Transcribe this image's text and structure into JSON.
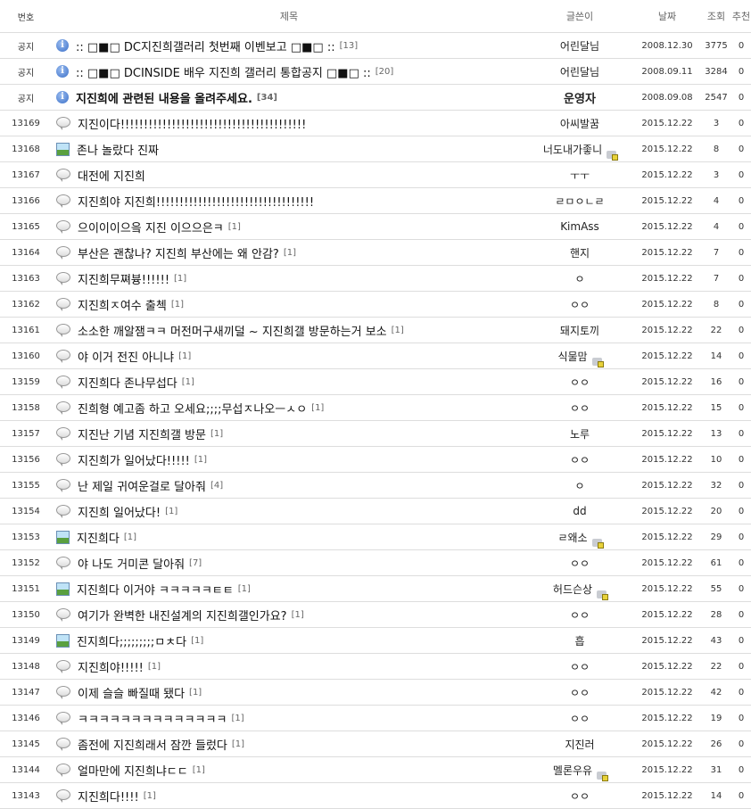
{
  "header": {
    "no": "번호",
    "title": "제목",
    "writer": "글쓴이",
    "date": "날짜",
    "views": "조회",
    "recommend": "추천"
  },
  "rows": [
    {
      "no": "공지",
      "icon": "info-icon",
      "title": ":: □■□ DC지진희갤러리 첫번째 이벤보고 □■□ ::",
      "comments": "[13]",
      "writer": "어린달님",
      "gallog": false,
      "date": "2008.12.30",
      "views": "3775",
      "recommend": "0",
      "bold": false
    },
    {
      "no": "공지",
      "icon": "info-icon",
      "title": ":: □■□ DCINSIDE 배우 지진희 갤러리 통합공지 □■□ ::",
      "comments": "[20]",
      "writer": "어린달님",
      "gallog": false,
      "date": "2008.09.11",
      "views": "3284",
      "recommend": "0",
      "bold": false
    },
    {
      "no": "공지",
      "icon": "info-icon",
      "title": "지진희에 관련된 내용을 올려주세요.",
      "comments": "[34]",
      "writer": "운영자",
      "gallog": false,
      "date": "2008.09.08",
      "views": "2547",
      "recommend": "0",
      "bold": true
    },
    {
      "no": "13169",
      "icon": "speech-bubble-icon",
      "title": "지진이다!!!!!!!!!!!!!!!!!!!!!!!!!!!!!!!!!!!!!!!!",
      "comments": "",
      "writer": "아씨발꿈",
      "gallog": false,
      "date": "2015.12.22",
      "views": "3",
      "recommend": "0"
    },
    {
      "no": "13168",
      "icon": "image-icon",
      "title": "존나 놀랐다 진짜",
      "comments": "",
      "writer": "너도내가좋니",
      "gallog": true,
      "date": "2015.12.22",
      "views": "8",
      "recommend": "0"
    },
    {
      "no": "13167",
      "icon": "speech-bubble-icon",
      "title": "대전에 지진희",
      "comments": "",
      "writer": "ㅜㅜ",
      "gallog": false,
      "date": "2015.12.22",
      "views": "3",
      "recommend": "0"
    },
    {
      "no": "13166",
      "icon": "speech-bubble-icon",
      "title": "지진희야 지진희!!!!!!!!!!!!!!!!!!!!!!!!!!!!!!!!!!",
      "comments": "",
      "writer": "ㄹㅁㅇㄴㄹ",
      "gallog": false,
      "date": "2015.12.22",
      "views": "4",
      "recommend": "0"
    },
    {
      "no": "13165",
      "icon": "speech-bubble-icon",
      "title": "으이이이으읔 지진 이으으은ㅋ",
      "comments": "[1]",
      "writer": "KimAss",
      "gallog": false,
      "date": "2015.12.22",
      "views": "4",
      "recommend": "0"
    },
    {
      "no": "13164",
      "icon": "speech-bubble-icon",
      "title": "부산은 괜찮나? 지진희 부산에는 왜 안감?",
      "comments": "[1]",
      "writer": "핸지",
      "gallog": false,
      "date": "2015.12.22",
      "views": "7",
      "recommend": "0"
    },
    {
      "no": "13163",
      "icon": "speech-bubble-icon",
      "title": "지진희무쪄븅!!!!!!",
      "comments": "[1]",
      "writer": "ㅇ",
      "gallog": false,
      "date": "2015.12.22",
      "views": "7",
      "recommend": "0"
    },
    {
      "no": "13162",
      "icon": "speech-bubble-icon",
      "title": "지진희ㅈ여수 출첵",
      "comments": "[1]",
      "writer": "ㅇㅇ",
      "gallog": false,
      "date": "2015.12.22",
      "views": "8",
      "recommend": "0"
    },
    {
      "no": "13161",
      "icon": "speech-bubble-icon",
      "title": "소소한 깨알잼ㅋㅋ 머전머구새끼덜 ~ 지진희갤 방문하는거 보소",
      "comments": "[1]",
      "writer": "돼지토끼",
      "gallog": false,
      "date": "2015.12.22",
      "views": "22",
      "recommend": "0"
    },
    {
      "no": "13160",
      "icon": "speech-bubble-icon",
      "title": "야 이거 전진 아니냐",
      "comments": "[1]",
      "writer": "식물맘",
      "gallog": true,
      "date": "2015.12.22",
      "views": "14",
      "recommend": "0"
    },
    {
      "no": "13159",
      "icon": "speech-bubble-icon",
      "title": "지진희다 존나무섭다",
      "comments": "[1]",
      "writer": "ㅇㅇ",
      "gallog": false,
      "date": "2015.12.22",
      "views": "16",
      "recommend": "0"
    },
    {
      "no": "13158",
      "icon": "speech-bubble-icon",
      "title": "진희형 예고좀 하고 오세요;;;;무섭ㅈ나오ㅡㅅㅇ",
      "comments": "[1]",
      "writer": "ㅇㅇ",
      "gallog": false,
      "date": "2015.12.22",
      "views": "15",
      "recommend": "0"
    },
    {
      "no": "13157",
      "icon": "speech-bubble-icon",
      "title": "지진난 기념 지진희갤 방문",
      "comments": "[1]",
      "writer": "노루",
      "gallog": false,
      "date": "2015.12.22",
      "views": "13",
      "recommend": "0"
    },
    {
      "no": "13156",
      "icon": "speech-bubble-icon",
      "title": "지진희가 일어났다!!!!!",
      "comments": "[1]",
      "writer": "ㅇㅇ",
      "gallog": false,
      "date": "2015.12.22",
      "views": "10",
      "recommend": "0"
    },
    {
      "no": "13155",
      "icon": "speech-bubble-icon",
      "title": "난 제일 귀여운걸로 달아줘",
      "comments": "[4]",
      "writer": "ㅇ",
      "gallog": false,
      "date": "2015.12.22",
      "views": "32",
      "recommend": "0"
    },
    {
      "no": "13154",
      "icon": "speech-bubble-icon",
      "title": "지진희 일어났다!",
      "comments": "[1]",
      "writer": "dd",
      "gallog": false,
      "date": "2015.12.22",
      "views": "20",
      "recommend": "0"
    },
    {
      "no": "13153",
      "icon": "image-icon",
      "title": "지진희다",
      "comments": "[1]",
      "writer": "ㄹ왜소",
      "gallog": true,
      "date": "2015.12.22",
      "views": "29",
      "recommend": "0"
    },
    {
      "no": "13152",
      "icon": "speech-bubble-icon",
      "title": "야 나도 거미콘 달아줘",
      "comments": "[7]",
      "writer": "ㅇㅇ",
      "gallog": false,
      "date": "2015.12.22",
      "views": "61",
      "recommend": "0"
    },
    {
      "no": "13151",
      "icon": "image-icon",
      "title": "지진희다 이거야 ㅋㅋㅋㅋㅋㅌㅌ",
      "comments": "[1]",
      "writer": "허드슨상",
      "gallog": true,
      "date": "2015.12.22",
      "views": "55",
      "recommend": "0"
    },
    {
      "no": "13150",
      "icon": "speech-bubble-icon",
      "title": "여기가 완벽한 내진설계의 지진희갤인가요?",
      "comments": "[1]",
      "writer": "ㅇㅇ",
      "gallog": false,
      "date": "2015.12.22",
      "views": "28",
      "recommend": "0"
    },
    {
      "no": "13149",
      "icon": "image-icon",
      "title": "진지희다;;;;;;;;;ㅁㅊ다",
      "comments": "[1]",
      "writer": "흡",
      "gallog": false,
      "date": "2015.12.22",
      "views": "43",
      "recommend": "0"
    },
    {
      "no": "13148",
      "icon": "speech-bubble-icon",
      "title": "지진희야!!!!!",
      "comments": "[1]",
      "writer": "ㅇㅇ",
      "gallog": false,
      "date": "2015.12.22",
      "views": "22",
      "recommend": "0"
    },
    {
      "no": "13147",
      "icon": "speech-bubble-icon",
      "title": "이제 슬슬 빠질때 됐다",
      "comments": "[1]",
      "writer": "ㅇㅇ",
      "gallog": false,
      "date": "2015.12.22",
      "views": "42",
      "recommend": "0"
    },
    {
      "no": "13146",
      "icon": "speech-bubble-icon",
      "title": "ㅋㅋㅋㅋㅋㅋㅋㅋㅋㅋㅋㅋㅋㅋ",
      "comments": "[1]",
      "writer": "ㅇㅇ",
      "gallog": false,
      "date": "2015.12.22",
      "views": "19",
      "recommend": "0"
    },
    {
      "no": "13145",
      "icon": "speech-bubble-icon",
      "title": "좀전에 지진희래서 잠깐 들렀다",
      "comments": "[1]",
      "writer": "지진러",
      "gallog": false,
      "date": "2015.12.22",
      "views": "26",
      "recommend": "0"
    },
    {
      "no": "13144",
      "icon": "speech-bubble-icon",
      "title": "얼마만에 지진희냐ㄷㄷ",
      "comments": "[1]",
      "writer": "멜론우유",
      "gallog": true,
      "date": "2015.12.22",
      "views": "31",
      "recommend": "0"
    },
    {
      "no": "13143",
      "icon": "speech-bubble-icon",
      "title": "지진희다!!!!",
      "comments": "[1]",
      "writer": "ㅇㅇ",
      "gallog": false,
      "date": "2015.12.22",
      "views": "14",
      "recommend": "0"
    }
  ]
}
